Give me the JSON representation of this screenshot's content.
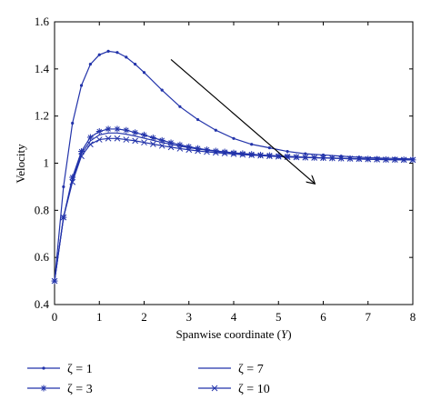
{
  "chart_data": {
    "type": "line",
    "xlabel": "Spanwise coordinate (Y)",
    "ylabel": "Velocity",
    "xlim": [
      0,
      8
    ],
    "ylim": [
      0.4,
      1.6
    ],
    "xticks": [
      "0",
      "1",
      "2",
      "3",
      "4",
      "5",
      "6",
      "7",
      "8"
    ],
    "yticks": [
      "0.4",
      "0.6",
      "0.8",
      "1",
      "1.2",
      "1.4",
      "1.6"
    ],
    "grid": false,
    "legend_position": "bottom",
    "line_color": "#2233aa",
    "series": [
      {
        "name": "ζ = 1",
        "marker": "dot",
        "x": [
          0,
          0.2,
          0.4,
          0.6,
          0.8,
          1.0,
          1.2,
          1.4,
          1.6,
          1.8,
          2.0,
          2.4,
          2.8,
          3.2,
          3.6,
          4.0,
          4.4,
          4.8,
          5.2,
          5.6,
          6.0,
          6.4,
          6.8,
          7.2,
          7.6,
          8.0
        ],
        "y": [
          0.5,
          0.9,
          1.17,
          1.33,
          1.42,
          1.46,
          1.475,
          1.47,
          1.45,
          1.42,
          1.385,
          1.31,
          1.24,
          1.185,
          1.14,
          1.105,
          1.08,
          1.065,
          1.05,
          1.04,
          1.035,
          1.03,
          1.025,
          1.022,
          1.02,
          1.018
        ]
      },
      {
        "name": "ζ = 3",
        "marker": "asterisk",
        "x": [
          0,
          0.2,
          0.4,
          0.6,
          0.8,
          1.0,
          1.2,
          1.4,
          1.6,
          1.8,
          2.0,
          2.2,
          2.4,
          2.6,
          2.8,
          3.0,
          3.2,
          3.4,
          3.6,
          3.8,
          4.0,
          4.2,
          4.4,
          4.6,
          4.8,
          5.0,
          5.2,
          5.4,
          5.6,
          5.8,
          6.0,
          6.2,
          6.4,
          6.6,
          6.8,
          7.0,
          7.2,
          7.4,
          7.6,
          7.8,
          8.0
        ],
        "y": [
          0.5,
          0.77,
          0.94,
          1.05,
          1.11,
          1.135,
          1.145,
          1.145,
          1.14,
          1.13,
          1.12,
          1.108,
          1.097,
          1.087,
          1.078,
          1.07,
          1.063,
          1.057,
          1.052,
          1.048,
          1.044,
          1.041,
          1.038,
          1.035,
          1.033,
          1.031,
          1.029,
          1.027,
          1.025,
          1.024,
          1.023,
          1.022,
          1.021,
          1.02,
          1.019,
          1.018,
          1.017,
          1.016,
          1.015,
          1.015,
          1.014
        ]
      },
      {
        "name": "ζ = 7",
        "marker": "none",
        "x": [
          0,
          0.2,
          0.4,
          0.6,
          0.8,
          1.0,
          1.2,
          1.4,
          1.6,
          1.8,
          2.0,
          2.4,
          2.8,
          3.2,
          3.6,
          4.0,
          4.4,
          4.8,
          5.2,
          5.6,
          6.0,
          6.4,
          6.8,
          7.2,
          7.6,
          8.0
        ],
        "y": [
          0.5,
          0.77,
          0.93,
          1.04,
          1.095,
          1.12,
          1.128,
          1.128,
          1.123,
          1.115,
          1.106,
          1.088,
          1.072,
          1.06,
          1.05,
          1.043,
          1.037,
          1.032,
          1.028,
          1.025,
          1.022,
          1.02,
          1.018,
          1.016,
          1.015,
          1.014
        ]
      },
      {
        "name": "ζ = 10",
        "marker": "x",
        "x": [
          0,
          0.2,
          0.4,
          0.6,
          0.8,
          1.0,
          1.2,
          1.4,
          1.6,
          1.8,
          2.0,
          2.2,
          2.4,
          2.6,
          2.8,
          3.0,
          3.2,
          3.4,
          3.6,
          3.8,
          4.0,
          4.2,
          4.4,
          4.6,
          4.8,
          5.0,
          5.2,
          5.4,
          5.6,
          5.8,
          6.0,
          6.2,
          6.4,
          6.6,
          6.8,
          7.0,
          7.2,
          7.4,
          7.6,
          7.8,
          8.0
        ],
        "y": [
          0.5,
          0.77,
          0.92,
          1.03,
          1.08,
          1.1,
          1.105,
          1.105,
          1.1,
          1.095,
          1.088,
          1.081,
          1.074,
          1.068,
          1.062,
          1.057,
          1.052,
          1.048,
          1.045,
          1.042,
          1.039,
          1.036,
          1.034,
          1.032,
          1.03,
          1.028,
          1.026,
          1.025,
          1.024,
          1.023,
          1.022,
          1.021,
          1.02,
          1.019,
          1.018,
          1.017,
          1.016,
          1.015,
          1.015,
          1.014,
          1.014
        ]
      }
    ],
    "annotations": [
      {
        "type": "arrow",
        "from": [
          2.6,
          1.44
        ],
        "to": [
          5.8,
          0.915
        ]
      }
    ]
  }
}
